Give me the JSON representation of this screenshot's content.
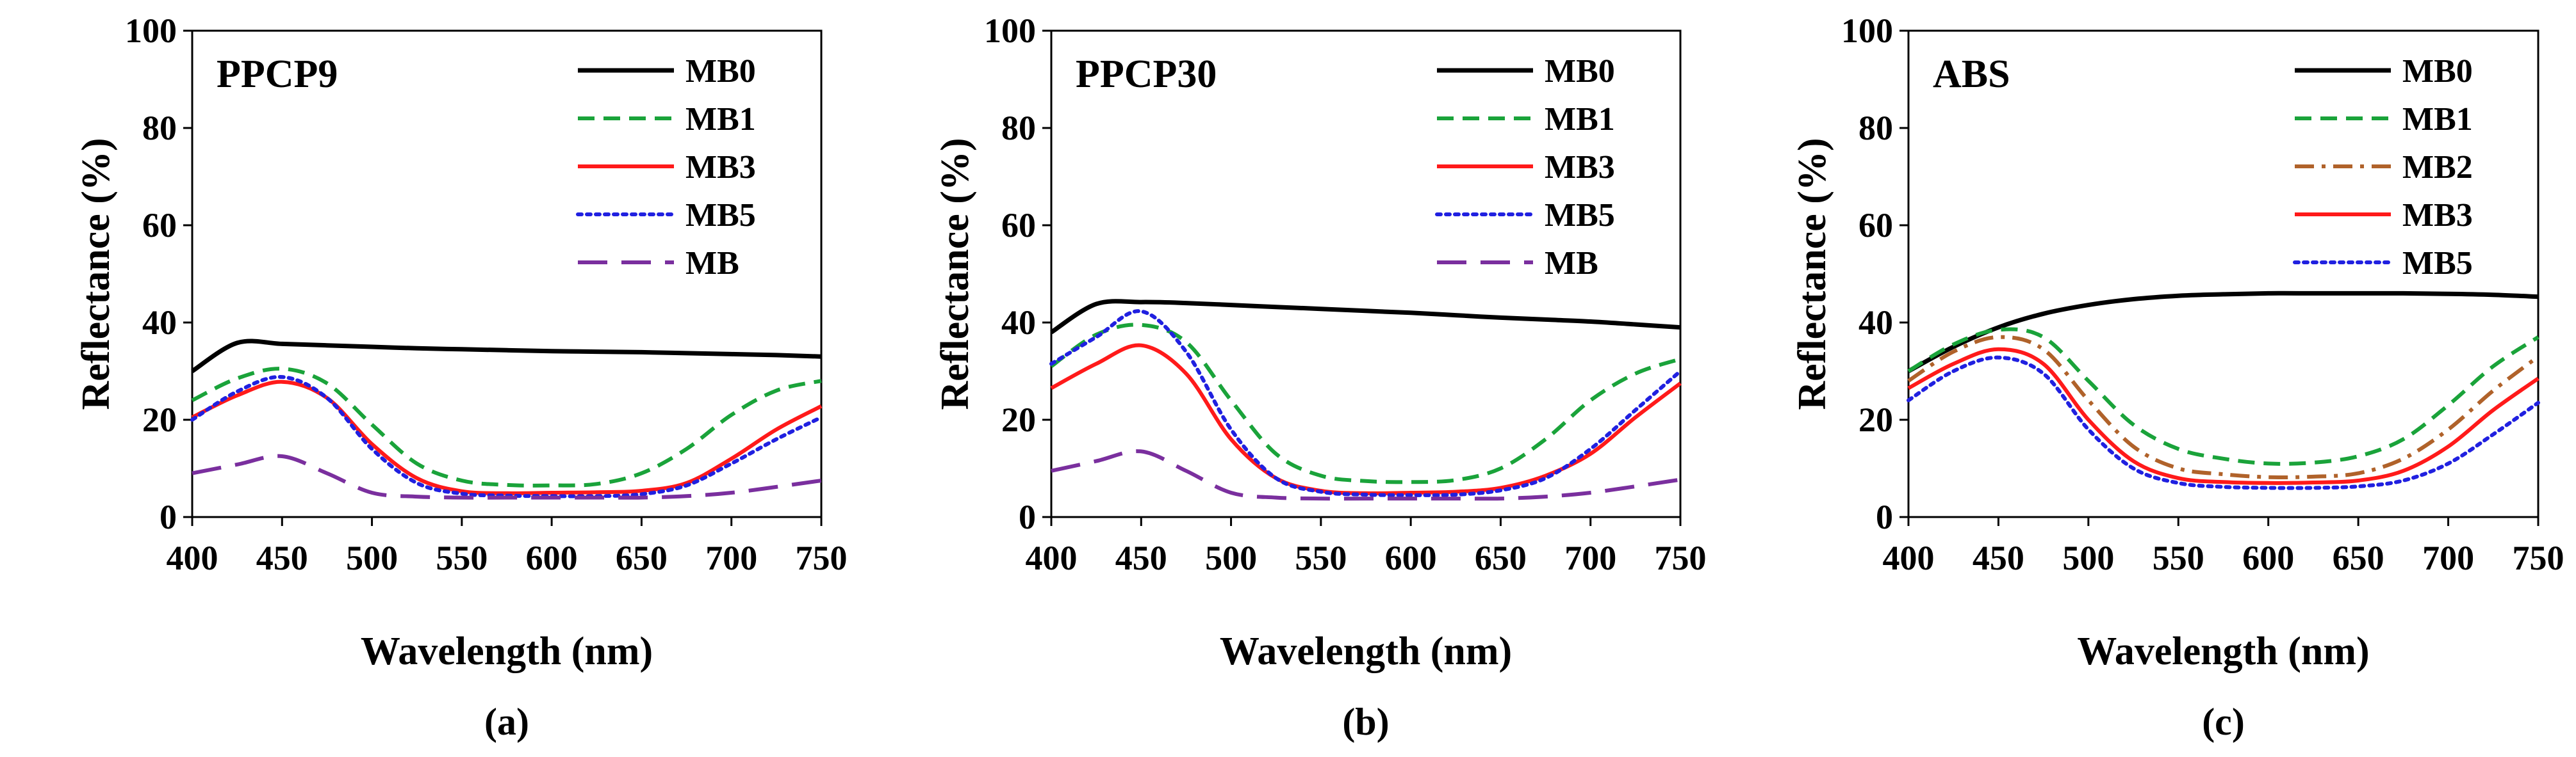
{
  "chart_data": [
    {
      "type": "line",
      "panel_label": "(a)",
      "title": "PPCP9",
      "xlabel": "Wavelength (nm)",
      "ylabel": "Reflectance (%)",
      "xlim": [
        400,
        750
      ],
      "ylim": [
        0,
        100
      ],
      "xticks": [
        "400",
        "450",
        "500",
        "550",
        "600",
        "650",
        "700",
        "750"
      ],
      "yticks": [
        "0",
        "20",
        "40",
        "60",
        "80",
        "100"
      ],
      "legend_position": "top-right",
      "x": [
        400,
        425,
        450,
        475,
        500,
        525,
        550,
        575,
        600,
        625,
        650,
        675,
        700,
        725,
        750
      ],
      "series": [
        {
          "name": "MB0",
          "color": "#000000",
          "dash": "solid",
          "values": [
            30,
            35.8,
            35.6,
            35.3,
            35.0,
            34.7,
            34.5,
            34.3,
            34.1,
            34.0,
            33.9,
            33.7,
            33.5,
            33.3,
            33.0
          ]
        },
        {
          "name": "MB1",
          "color": "#1aa33a",
          "dash": "dashed",
          "values": [
            24,
            28.5,
            30.5,
            27.5,
            19,
            11,
            7.5,
            6.6,
            6.5,
            6.8,
            9,
            14,
            21,
            26,
            28
          ]
        },
        {
          "name": "MB3",
          "color": "#ff1a1a",
          "dash": "solid",
          "values": [
            20.5,
            25,
            27.8,
            24.5,
            15,
            8,
            5.3,
            4.9,
            5.0,
            5.1,
            5.4,
            7,
            12,
            18,
            22.8
          ]
        },
        {
          "name": "MB5",
          "color": "#2020e0",
          "dash": "dotted",
          "values": [
            20,
            25.8,
            28.8,
            24.5,
            14,
            7,
            4.8,
            4.4,
            4.3,
            4.3,
            4.7,
            6.5,
            11,
            16,
            20.5
          ]
        },
        {
          "name": "MB",
          "color": "#7a2f9e",
          "dash": "longdash",
          "values": [
            9,
            10.8,
            12.5,
            9,
            5,
            4.2,
            4.0,
            4.0,
            4.0,
            4.0,
            4.0,
            4.3,
            5,
            6.2,
            7.5
          ]
        }
      ]
    },
    {
      "type": "line",
      "panel_label": "(b)",
      "title": "PPCP30",
      "xlabel": "Wavelength (nm)",
      "ylabel": "Reflectance (%)",
      "xlim": [
        400,
        750
      ],
      "ylim": [
        0,
        100
      ],
      "xticks": [
        "400",
        "450",
        "500",
        "550",
        "600",
        "650",
        "700",
        "750"
      ],
      "yticks": [
        "0",
        "20",
        "40",
        "60",
        "80",
        "100"
      ],
      "legend_position": "top-right",
      "x": [
        400,
        425,
        450,
        475,
        500,
        525,
        550,
        575,
        600,
        625,
        650,
        675,
        700,
        725,
        750
      ],
      "series": [
        {
          "name": "MB0",
          "color": "#000000",
          "dash": "solid",
          "values": [
            38,
            43.8,
            44.2,
            44.0,
            43.6,
            43.2,
            42.8,
            42.4,
            42.0,
            41.5,
            41.0,
            40.6,
            40.2,
            39.6,
            39.0
          ]
        },
        {
          "name": "MB1",
          "color": "#1aa33a",
          "dash": "dashed",
          "values": [
            31,
            37.5,
            39.5,
            36,
            24,
            13,
            8.5,
            7.4,
            7.2,
            7.6,
            10,
            16,
            24,
            29.5,
            32.5
          ]
        },
        {
          "name": "MB3",
          "color": "#ff1a1a",
          "dash": "solid",
          "values": [
            26.5,
            31.5,
            35.3,
            29.5,
            16,
            8,
            5.4,
            4.9,
            5.0,
            5.2,
            6,
            8.5,
            13,
            20.5,
            27.5
          ]
        },
        {
          "name": "MB5",
          "color": "#2020e0",
          "dash": "dotted",
          "values": [
            31.5,
            37,
            42.3,
            34,
            18,
            8,
            5.2,
            4.6,
            4.5,
            4.6,
            5.5,
            8,
            14,
            22,
            30
          ]
        },
        {
          "name": "MB",
          "color": "#7a2f9e",
          "dash": "longdash",
          "values": [
            9.5,
            11.5,
            13.5,
            9.5,
            5,
            4.0,
            3.8,
            3.8,
            3.8,
            3.8,
            3.8,
            4.2,
            5,
            6.3,
            7.7
          ]
        }
      ]
    },
    {
      "type": "line",
      "panel_label": "(c)",
      "title": "ABS",
      "xlabel": "Wavelength (nm)",
      "ylabel": "Reflectance (%)",
      "xlim": [
        400,
        750
      ],
      "ylim": [
        0,
        100
      ],
      "xticks": [
        "400",
        "450",
        "500",
        "550",
        "600",
        "650",
        "700",
        "750"
      ],
      "yticks": [
        "0",
        "20",
        "40",
        "60",
        "80",
        "100"
      ],
      "legend_position": "top-right",
      "x": [
        400,
        425,
        450,
        475,
        500,
        525,
        550,
        575,
        600,
        625,
        650,
        675,
        700,
        725,
        750
      ],
      "series": [
        {
          "name": "MB0",
          "color": "#000000",
          "dash": "solid",
          "values": [
            30,
            35,
            39,
            41.8,
            43.6,
            44.8,
            45.5,
            45.8,
            46.0,
            46.0,
            46.0,
            46.0,
            45.9,
            45.7,
            45.3
          ]
        },
        {
          "name": "MB1",
          "color": "#1aa33a",
          "dash": "dashed",
          "values": [
            30,
            35.5,
            38.5,
            37,
            28,
            19,
            14,
            12,
            11,
            11.2,
            12.5,
            16,
            23,
            31,
            37
          ]
        },
        {
          "name": "MB2",
          "color": "#b0622a",
          "dash": "dashdot",
          "values": [
            28,
            34,
            37,
            34.5,
            24,
            14.5,
            10,
            8.8,
            8.2,
            8.3,
            9,
            12,
            18,
            26,
            33
          ]
        },
        {
          "name": "MB3",
          "color": "#ff1a1a",
          "dash": "solid",
          "values": [
            26.5,
            31.5,
            34.5,
            31.5,
            20,
            11.5,
            8,
            7.2,
            7.0,
            7.1,
            7.5,
            9.5,
            14.5,
            22,
            28.5
          ]
        },
        {
          "name": "MB5",
          "color": "#2020e0",
          "dash": "dotted",
          "values": [
            24,
            30,
            32.8,
            29.5,
            18,
            10,
            7,
            6.2,
            6.0,
            6.0,
            6.3,
            7.5,
            11,
            17,
            23.5
          ]
        }
      ]
    }
  ]
}
